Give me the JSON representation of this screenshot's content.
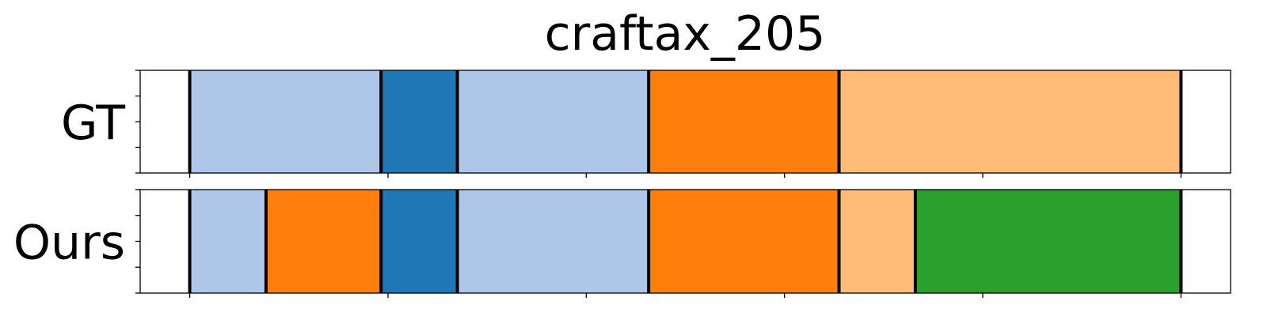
{
  "chart_data": {
    "type": "segmentation-timeline",
    "title": "craftax_205",
    "xlim": [
      0,
      1100
    ],
    "x_ticks": [
      50,
      250,
      450,
      650,
      850,
      1050
    ],
    "y_tick_count": 5,
    "tick_labels_visible": false,
    "boundary_color": "#000000",
    "rows": [
      {
        "label": "GT",
        "segments": [
          {
            "start": 50,
            "end": 243,
            "color": "#aec7e8"
          },
          {
            "start": 243,
            "end": 320,
            "color": "#1f77b4"
          },
          {
            "start": 320,
            "end": 513,
            "color": "#aec7e8"
          },
          {
            "start": 513,
            "end": 705,
            "color": "#ff7f0e"
          },
          {
            "start": 705,
            "end": 1050,
            "color": "#ffbb78"
          }
        ],
        "boundaries": [
          50,
          243,
          320,
          513,
          705,
          1050
        ]
      },
      {
        "label": "Ours",
        "segments": [
          {
            "start": 50,
            "end": 127,
            "color": "#aec7e8"
          },
          {
            "start": 127,
            "end": 243,
            "color": "#ff7f0e"
          },
          {
            "start": 243,
            "end": 320,
            "color": "#1f77b4"
          },
          {
            "start": 320,
            "end": 513,
            "color": "#aec7e8"
          },
          {
            "start": 513,
            "end": 705,
            "color": "#ff7f0e"
          },
          {
            "start": 705,
            "end": 782,
            "color": "#ffbb78"
          },
          {
            "start": 782,
            "end": 1050,
            "color": "#2ca02c"
          }
        ],
        "boundaries": [
          50,
          127,
          243,
          320,
          513,
          705,
          782,
          1050
        ]
      }
    ]
  }
}
